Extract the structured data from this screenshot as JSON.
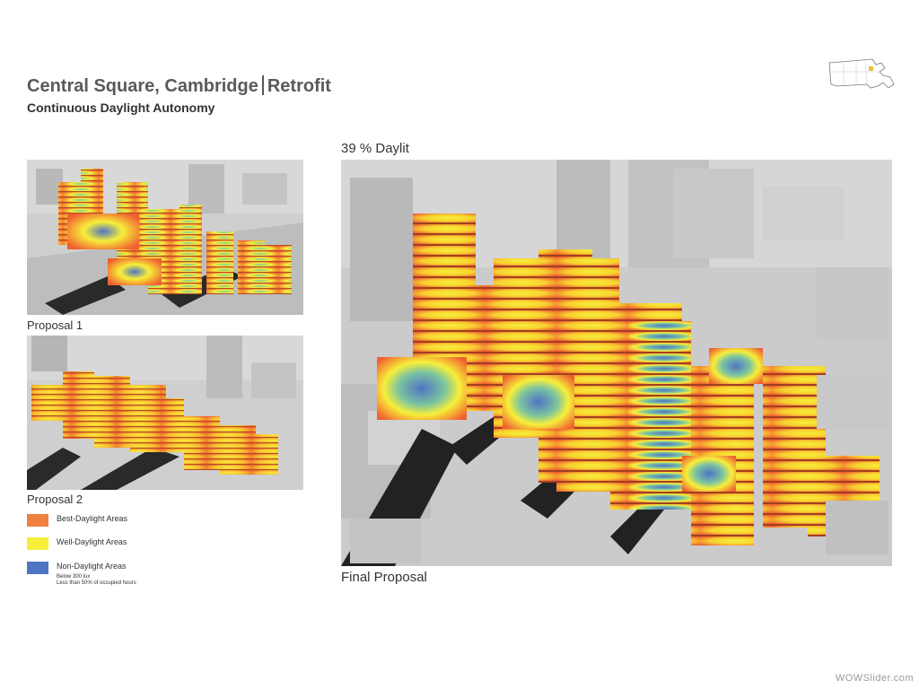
{
  "header": {
    "title_left": "Central Square, Cambridge",
    "title_right": "Retrofit",
    "subtitle": "Continuous Daylight Autonomy"
  },
  "panels": {
    "proposal1": {
      "caption": "Proposal 1"
    },
    "proposal2": {
      "caption": "Proposal 2"
    },
    "final": {
      "top_caption": "39 % Daylit",
      "bottom_caption": "Final Proposal"
    }
  },
  "legend": {
    "items": [
      {
        "label": "Best-Daylight Areas",
        "color": "#f08040"
      },
      {
        "label": "Well-Daylight Areas",
        "color": "#f7ef3a"
      },
      {
        "label": "Non-Daylight Areas",
        "color": "#4f74c4"
      }
    ],
    "notes": [
      "Below 300 lux",
      "Less than 50% of occupied hours"
    ]
  },
  "watermark": "WOWSlider.com",
  "icons": {
    "locator_map": "massachusetts-map-icon"
  },
  "colors": {
    "best": "#f08040",
    "well": "#f7ef3a",
    "non": "#4f74c4",
    "building": "#c8c8c8",
    "shadow": "#222222"
  }
}
